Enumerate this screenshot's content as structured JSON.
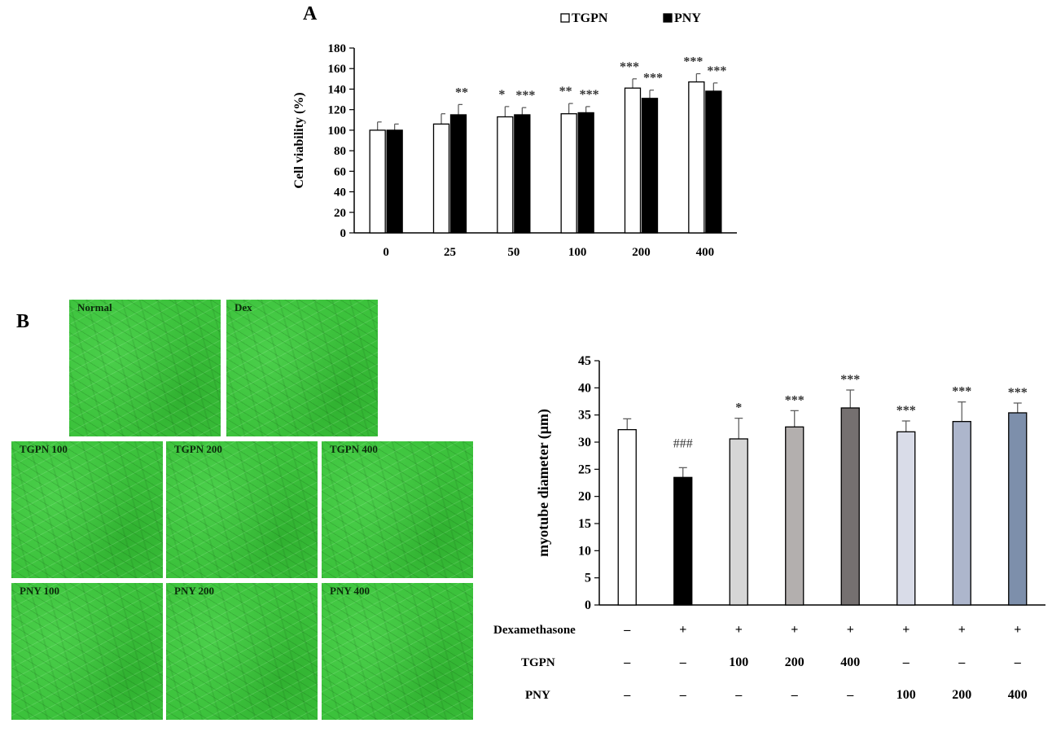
{
  "panel_a_label": "A",
  "panel_b_label": "B",
  "micrographs": [
    {
      "label": "Normal"
    },
    {
      "label": "Dex"
    },
    {
      "label": "TGPN 100"
    },
    {
      "label": "TGPN 200"
    },
    {
      "label": "TGPN 400"
    },
    {
      "label": "PNY 100"
    },
    {
      "label": "PNY 200"
    },
    {
      "label": "PNY 400"
    }
  ],
  "chart_data": [
    {
      "type": "bar",
      "title": "",
      "xlabel": "",
      "ylabel": "Cell viability  (%)",
      "ylim": [
        0,
        180
      ],
      "yticks": [
        0,
        20,
        40,
        60,
        80,
        100,
        120,
        140,
        160,
        180
      ],
      "categories": [
        "0",
        "25",
        "50",
        "100",
        "200",
        "400"
      ],
      "legend_position": "top",
      "series": [
        {
          "name": "TGPN",
          "color": "#ffffff",
          "values": [
            100,
            106,
            113,
            116,
            141,
            147
          ],
          "errors": [
            8,
            10,
            10,
            10,
            9,
            8
          ],
          "significance": [
            "",
            "",
            "*",
            "**",
            "***",
            "***"
          ]
        },
        {
          "name": "PNY",
          "color": "#000000",
          "values": [
            100,
            115,
            115,
            117,
            131,
            138
          ],
          "errors": [
            6,
            10,
            7,
            6,
            8,
            8
          ],
          "significance": [
            "",
            "**",
            "***",
            "***",
            "***",
            "***"
          ]
        }
      ]
    },
    {
      "type": "bar",
      "title": "",
      "xlabel": "",
      "ylabel": "myotube diameter (μm)",
      "ylim": [
        0,
        45
      ],
      "yticks": [
        0,
        5,
        10,
        15,
        20,
        25,
        30,
        35,
        40,
        45
      ],
      "values": [
        32.3,
        23.5,
        30.6,
        32.8,
        36.3,
        31.9,
        33.8,
        35.4
      ],
      "errors": [
        2.0,
        1.8,
        3.8,
        3.0,
        3.3,
        2.0,
        3.6,
        1.8
      ],
      "colors": [
        "#ffffff",
        "#000000",
        "#d6d6d6",
        "#b3afae",
        "#757070",
        "#d9dce8",
        "#adb6cc",
        "#7d8fab"
      ],
      "annotations": [
        "",
        "###",
        "*",
        "***",
        "***",
        "***",
        "***",
        "***"
      ],
      "treatment_rows": [
        {
          "label": "Dexamethasone",
          "values": [
            "–",
            "+",
            "+",
            "+",
            "+",
            "+",
            "+",
            "+"
          ]
        },
        {
          "label": "TGPN",
          "values": [
            "–",
            "–",
            "100",
            "200",
            "400",
            "–",
            "–",
            "–"
          ]
        },
        {
          "label": "PNY",
          "values": [
            "–",
            "–",
            "–",
            "–",
            "–",
            "100",
            "200",
            "400"
          ]
        }
      ]
    }
  ]
}
